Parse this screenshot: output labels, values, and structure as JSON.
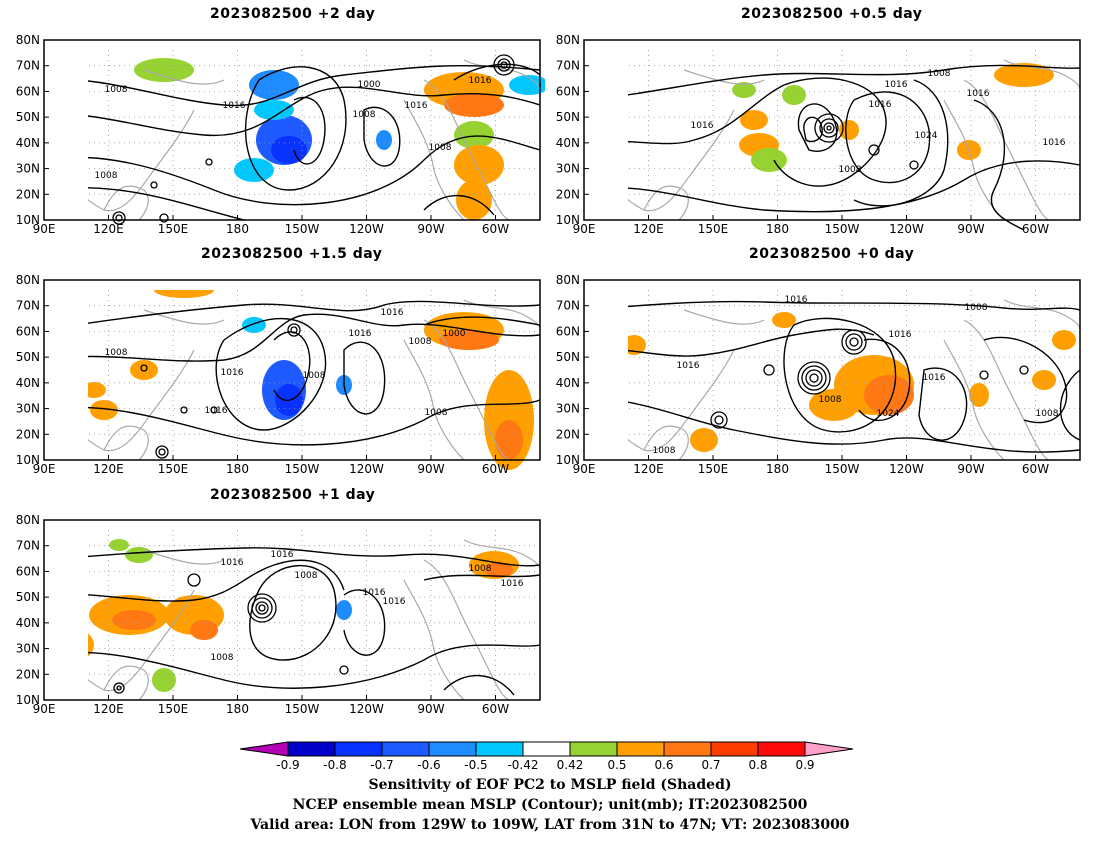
{
  "panels": [
    {
      "id": "p2",
      "title": "2023082500 +2 day"
    },
    {
      "id": "p05",
      "title": "2023082500 +0.5 day"
    },
    {
      "id": "p15",
      "title": "2023082500 +1.5 day"
    },
    {
      "id": "p0",
      "title": "2023082500 +0 day"
    },
    {
      "id": "p1",
      "title": "2023082500 +1 day"
    }
  ],
  "axes": {
    "lat_labels": [
      "80N",
      "70N",
      "60N",
      "50N",
      "40N",
      "30N",
      "20N",
      "10N"
    ],
    "lon_labels": [
      "90E",
      "120E",
      "150E",
      "180",
      "150W",
      "120W",
      "90W",
      "60W"
    ]
  },
  "contour_labels": {
    "p2": [
      "1008",
      "1016",
      "1000",
      "1016",
      "1008",
      "1016",
      "1008",
      "1008"
    ],
    "p05": [
      "1008",
      "1016",
      "1008",
      "1016",
      "1016",
      "1016",
      "1024",
      "1008",
      "1016"
    ],
    "p15": [
      "1016",
      "1016",
      "1008",
      "1000",
      "1008",
      "1016",
      "1008",
      "1008",
      "1016"
    ],
    "p0": [
      "1016",
      "1008",
      "1016",
      "1016",
      "1008",
      "1024",
      "1016",
      "1008",
      "1008"
    ],
    "p1": [
      "1008",
      "1016",
      "1016",
      "1008",
      "1016",
      "1016",
      "1008",
      "1016",
      "1008"
    ]
  },
  "colorbar": {
    "labels": [
      "-0.9",
      "-0.8",
      "-0.7",
      "-0.6",
      "-0.5",
      "-0.42",
      "0.42",
      "0.5",
      "0.6",
      "0.7",
      "0.8",
      "0.9"
    ],
    "colors": [
      "#b400b4",
      "#0000c8",
      "#0a32ff",
      "#1e5aff",
      "#1e8cff",
      "#00c8ff",
      "#ffffff",
      "#96d232",
      "#ffa000",
      "#ff7814",
      "#ff3c00",
      "#ff0a0a",
      "#ffa0c8"
    ]
  },
  "caption": {
    "line1": "Sensitivity of EOF PC2 to MSLP field (Shaded)",
    "line2": "NCEP ensemble mean MSLP (Contour); unit(mb); IT:2023082500",
    "line3": "Valid area: LON from 129W to 109W, LAT from 31N to 47N; VT: 2023083000"
  }
}
